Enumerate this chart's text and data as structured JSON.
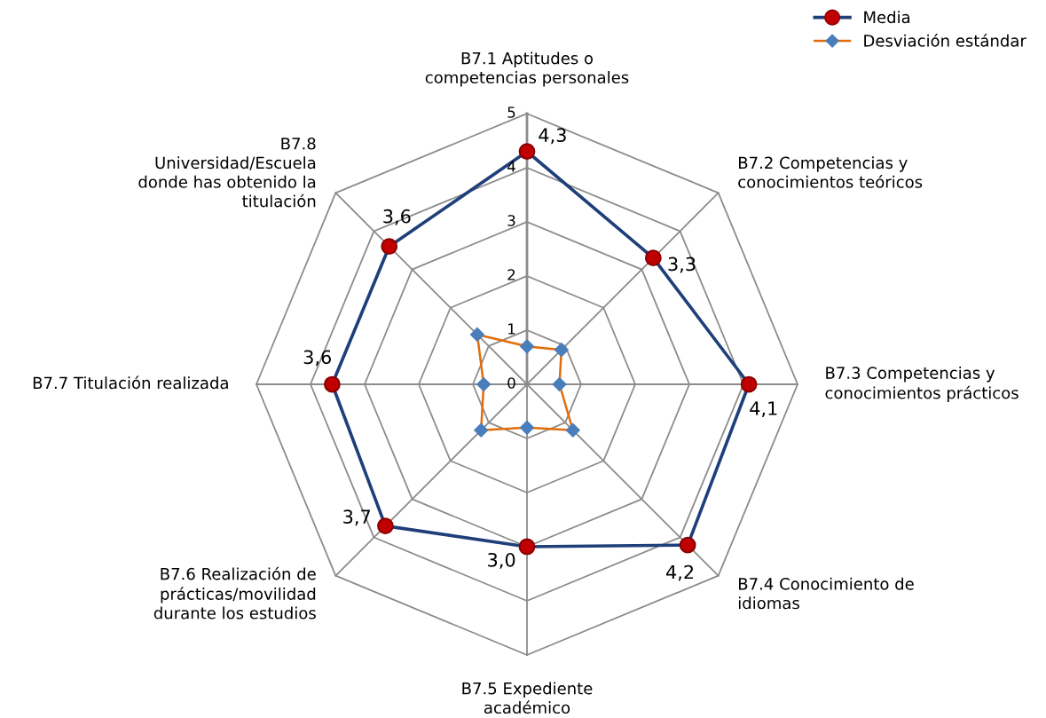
{
  "chart_data": {
    "type": "radar",
    "categories": [
      "B7.1 Aptitudes o\ncompetencias personales",
      "B7.2 Competencias y\nconocimientos teóricos",
      "B7.3 Competencias y\nconocimientos prácticos",
      "B7.4 Conocimiento de\nidiomas",
      "B7.5 Expediente\nacadémico",
      "B7.6 Realización de\nprácticas/movilidad\ndurante los estudios",
      "B7.7 Titulación realizada",
      "B7.8\nUniversidad/Escuela\ndonde has obtenido la\ntitulación"
    ],
    "ylim": [
      0,
      5
    ],
    "yticks": [
      0,
      1,
      2,
      3,
      4,
      5
    ],
    "grid": true,
    "legend": "top right",
    "series": [
      {
        "name": "Media",
        "color": "#1f3f7a",
        "colors": [
          "#c00000",
          "#c00000",
          "#c00000",
          "#c00000",
          "#c00000",
          "#c00000",
          "#c00000",
          "#c00000"
        ],
        "marker": "circle",
        "values": [
          4.3,
          3.3,
          4.1,
          4.2,
          3.0,
          3.7,
          3.6,
          3.6
        ],
        "value_labels": [
          "4,3",
          "3,3",
          "4,1",
          "4,2",
          "3,0",
          "3,7",
          "3,6",
          "3,6"
        ]
      },
      {
        "name": "Desviación estándar",
        "color": "#e36c09",
        "colors": [
          "#4a7ebb",
          "#4a7ebb",
          "#4a7ebb",
          "#4a7ebb",
          "#4a7ebb",
          "#4a7ebb",
          "#4a7ebb",
          "#4a7ebb"
        ],
        "marker": "diamond",
        "values": [
          0.7,
          0.9,
          0.6,
          1.2,
          0.8,
          1.2,
          0.8,
          1.3
        ]
      }
    ]
  }
}
